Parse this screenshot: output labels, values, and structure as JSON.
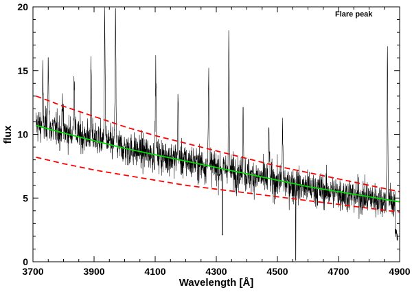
{
  "chart_data": {
    "type": "line",
    "title": "",
    "annotation": "Flare peak",
    "xlabel": "Wavelength [Å]",
    "ylabel": "flux",
    "xlim": [
      3700,
      4900
    ],
    "ylim": [
      0,
      20
    ],
    "x_ticks": [
      3700,
      3900,
      4100,
      4300,
      4500,
      4700,
      4900
    ],
    "y_ticks": [
      0,
      5,
      10,
      15,
      20
    ],
    "grid": false,
    "legend": "none",
    "spectrum": {
      "color": "#000000",
      "continuum_anchors": [
        [
          3710,
          10.8
        ],
        [
          3800,
          10.2
        ],
        [
          3900,
          9.7
        ],
        [
          4000,
          8.9
        ],
        [
          4100,
          8.4
        ],
        [
          4200,
          7.9
        ],
        [
          4300,
          7.4
        ],
        [
          4400,
          6.8
        ],
        [
          4500,
          6.3
        ],
        [
          4600,
          5.8
        ],
        [
          4700,
          5.4
        ],
        [
          4800,
          5.0
        ],
        [
          4900,
          4.6
        ]
      ],
      "emission_peaks": [
        [
          3732,
          14.7
        ],
        [
          3750,
          15.8
        ],
        [
          3797,
          13.2
        ],
        [
          3835,
          14.8
        ],
        [
          3890,
          15.3
        ],
        [
          3935,
          19.5
        ],
        [
          3970,
          19.8
        ],
        [
          4102,
          15.2
        ],
        [
          4175,
          12.8
        ],
        [
          4275,
          14.6
        ],
        [
          4341,
          17.8
        ],
        [
          4388,
          11.9
        ],
        [
          4472,
          10.8
        ],
        [
          4517,
          10.3
        ],
        [
          4860,
          16.3
        ]
      ]
    },
    "series": [
      {
        "values": [
          [
            3710,
            10.7
          ],
          [
            3800,
            10.1
          ],
          [
            3900,
            9.5
          ],
          [
            4000,
            8.9
          ],
          [
            4100,
            8.4
          ],
          [
            4200,
            7.9
          ],
          [
            4300,
            7.4
          ],
          [
            4400,
            6.9
          ],
          [
            4500,
            6.4
          ],
          [
            4600,
            5.9
          ],
          [
            4700,
            5.5
          ],
          [
            4800,
            5.1
          ],
          [
            4900,
            4.7
          ]
        ],
        "color": "#00dd00",
        "style": "solid"
      },
      {
        "values": [
          [
            3710,
            13.0
          ],
          [
            3800,
            12.2
          ],
          [
            3900,
            11.4
          ],
          [
            4000,
            10.6
          ],
          [
            4100,
            9.9
          ],
          [
            4200,
            9.3
          ],
          [
            4300,
            8.7
          ],
          [
            4400,
            8.1
          ],
          [
            4500,
            7.5
          ],
          [
            4600,
            7.0
          ],
          [
            4700,
            6.5
          ],
          [
            4800,
            6.0
          ],
          [
            4900,
            5.5
          ]
        ],
        "color": "#ff0000",
        "style": "dashed"
      },
      {
        "values": [
          [
            3710,
            8.2
          ],
          [
            3800,
            7.7
          ],
          [
            3900,
            7.2
          ],
          [
            4000,
            6.8
          ],
          [
            4100,
            6.4
          ],
          [
            4200,
            6.0
          ],
          [
            4300,
            5.7
          ],
          [
            4400,
            5.4
          ],
          [
            4500,
            5.1
          ],
          [
            4600,
            4.8
          ],
          [
            4700,
            4.5
          ],
          [
            4800,
            4.2
          ],
          [
            4900,
            3.9
          ]
        ],
        "color": "#ff0000",
        "style": "dashed"
      }
    ]
  }
}
